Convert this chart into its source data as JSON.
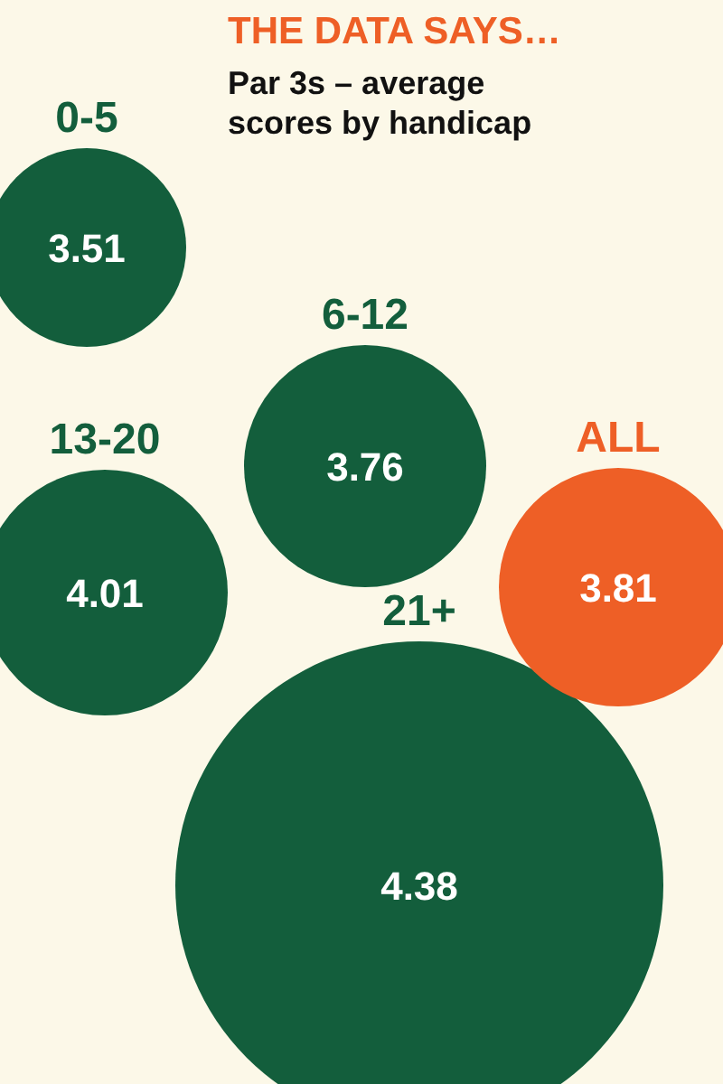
{
  "chart_data": {
    "type": "other",
    "title": "THE DATA SAYS…",
    "subtitle": "Par 3s – average scores by handicap",
    "categories": [
      "0-5",
      "6-12",
      "13-20",
      "21+",
      "ALL"
    ],
    "values": [
      3.51,
      3.76,
      4.01,
      4.38,
      3.81
    ],
    "colors": [
      "#135e3c",
      "#135e3c",
      "#135e3c",
      "#135e3c",
      "#ee5f26"
    ],
    "data_labels": true
  }
}
